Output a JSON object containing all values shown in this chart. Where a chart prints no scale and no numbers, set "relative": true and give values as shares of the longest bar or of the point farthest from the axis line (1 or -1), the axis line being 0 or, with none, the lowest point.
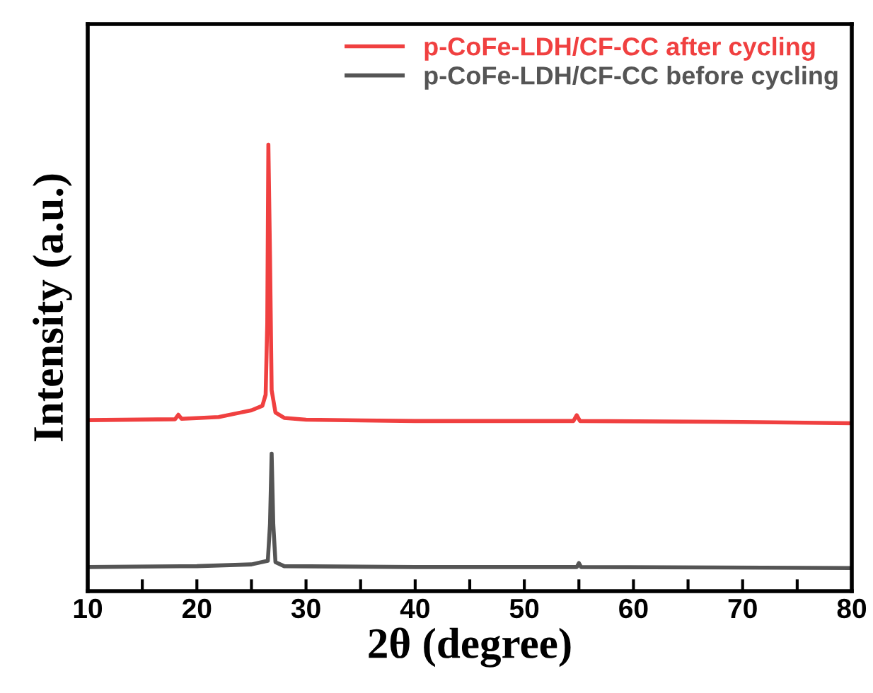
{
  "chart_data": {
    "type": "line",
    "relative": true,
    "xlabel": "2θ (degree)",
    "ylabel": "Intensity (a.u.)",
    "xlim": [
      10,
      80
    ],
    "xticks": [
      10,
      {
        "value": 15,
        "label": null
      },
      20,
      {
        "value": 25,
        "label": null
      },
      30,
      {
        "value": 35,
        "label": null
      },
      40,
      {
        "value": 45,
        "label": null
      },
      50,
      {
        "value": 55,
        "label": null
      },
      60,
      {
        "value": 65,
        "label": null
      },
      70,
      {
        "value": 75,
        "label": null
      },
      80
    ],
    "legend": "top right",
    "grid": false,
    "series": [
      {
        "name": "p-CoFe-LDH/CF-CC after cycling",
        "color": "#f04040",
        "x": [
          10,
          18,
          18.3,
          18.6,
          22,
          24,
          25,
          26,
          26.3,
          26.45,
          26.55,
          26.7,
          26.85,
          27.2,
          28,
          30,
          40,
          54.5,
          54.8,
          55.1,
          70,
          80
        ],
        "values": [
          0.383,
          0.385,
          0.395,
          0.386,
          0.39,
          0.4,
          0.405,
          0.415,
          0.44,
          0.6,
          1.0,
          0.75,
          0.45,
          0.4,
          0.388,
          0.384,
          0.381,
          0.381,
          0.394,
          0.381,
          0.379,
          0.376
        ]
      },
      {
        "name": "p-CoFe-LDH/CF-CC before cycling",
        "color": "#555555",
        "x": [
          10,
          20,
          25,
          26.5,
          26.7,
          26.85,
          27.0,
          27.2,
          28,
          40,
          54.8,
          55.0,
          55.2,
          80
        ],
        "values": [
          0.054,
          0.056,
          0.06,
          0.068,
          0.15,
          0.308,
          0.15,
          0.065,
          0.056,
          0.054,
          0.054,
          0.063,
          0.054,
          0.052
        ]
      }
    ]
  }
}
